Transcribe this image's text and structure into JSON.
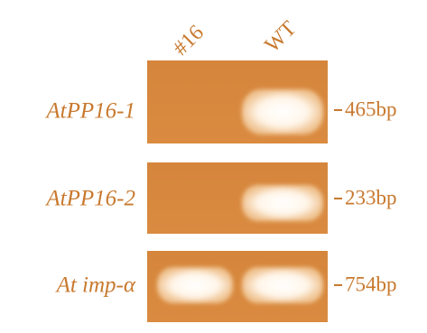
{
  "lanes": [
    "#16",
    "WT"
  ],
  "rows": [
    {
      "label": "AtPP16-1",
      "size": "465bp"
    },
    {
      "label": "AtPP16-2",
      "size": "233bp"
    },
    {
      "label": "At imp-α",
      "size": "754bp"
    }
  ]
}
